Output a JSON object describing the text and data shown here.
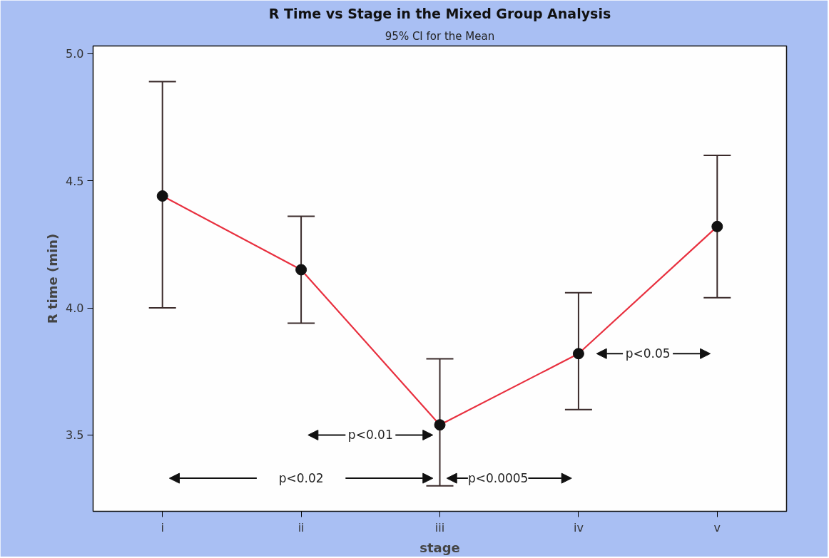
{
  "chart_data": {
    "type": "line",
    "title": "R Time vs Stage in the Mixed Group Analysis",
    "subtitle": "95% CI for the Mean",
    "xlabel": "stage",
    "ylabel": "R time (min)",
    "categories": [
      "i",
      "ii",
      "iii",
      "iv",
      "v"
    ],
    "series": [
      {
        "color": "#e8303f",
        "values": [
          4.44,
          4.15,
          3.54,
          3.82,
          4.32
        ],
        "errors": [
          [
            4.0,
            4.89
          ],
          [
            3.94,
            4.36
          ],
          [
            3.3,
            3.8
          ],
          [
            3.6,
            4.06
          ],
          [
            4.04,
            4.6
          ]
        ]
      }
    ],
    "ylim": [
      3.2,
      5.03
    ],
    "yticks": [
      3.5,
      {
        "value": 4,
        "label": "4.0"
      },
      4.5,
      {
        "value": 5,
        "label": "5.0"
      }
    ],
    "marker": "circle",
    "line_style": "solid",
    "grid": false,
    "annotations": [
      "p<0.01",
      "p<0.02",
      "p<0.0005",
      "p<0.05"
    ]
  }
}
